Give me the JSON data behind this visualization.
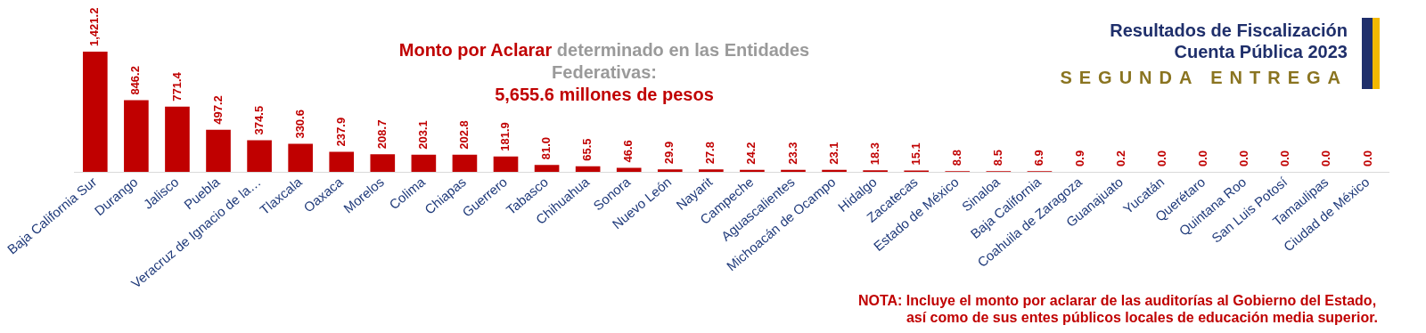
{
  "chart_data": {
    "type": "bar",
    "title": "Monto por Aclarar determinado en las Entidades Federativas:",
    "subtitle": "5,655.6 millones de pesos",
    "categories": [
      "Baja California Sur",
      "Durango",
      "Jalisco",
      "Puebla",
      "Veracruz de Ignacio de la…",
      "Tlaxcala",
      "Oaxaca",
      "Morelos",
      "Colima",
      "Chiapas",
      "Guerrero",
      "Tabasco",
      "Chihuahua",
      "Sonora",
      "Nuevo León",
      "Nayarit",
      "Campeche",
      "Aguascalientes",
      "Michoacán de Ocampo",
      "Hidalgo",
      "Zacatecas",
      "Estado de México",
      "Sinaloa",
      "Baja California",
      "Coahuila de Zaragoza",
      "Guanajuato",
      "Yucatán",
      "Querétaro",
      "Quintana Roo",
      "San Luis Potosí",
      "Tamaulipas",
      "Ciudad de México"
    ],
    "values": [
      1421.2,
      846.2,
      771.4,
      497.2,
      374.5,
      330.6,
      237.9,
      208.7,
      203.1,
      202.8,
      181.9,
      81.0,
      65.5,
      46.6,
      29.9,
      27.8,
      24.2,
      23.3,
      23.1,
      18.3,
      15.1,
      8.8,
      8.5,
      6.9,
      0.9,
      0.2,
      0.0,
      0.0,
      0.0,
      0.0,
      0.0,
      0.0
    ],
    "value_labels": [
      "1,421.2",
      "846.2",
      "771.4",
      "497.2",
      "374.5",
      "330.6",
      "237.9",
      "208.7",
      "203.1",
      "202.8",
      "181.9",
      "81.0",
      "65.5",
      "46.6",
      "29.9",
      "27.8",
      "24.2",
      "23.3",
      "23.1",
      "18.3",
      "15.1",
      "8.8",
      "8.5",
      "6.9",
      "0.9",
      "0.2",
      "0.0",
      "0.0",
      "0.0",
      "0.0",
      "0.0",
      "0.0"
    ],
    "color": "#c00000",
    "grid": false,
    "legend": false,
    "annotations": [
      "Resultados de Fiscalización",
      "Cuenta Pública 2023",
      "SEGUNDA ENTREGA",
      "NOTA: Incluye el monto por aclarar de las auditorías al Gobierno del Estado,",
      "así como de sus entes públicos locales de educación media superior."
    ]
  }
}
